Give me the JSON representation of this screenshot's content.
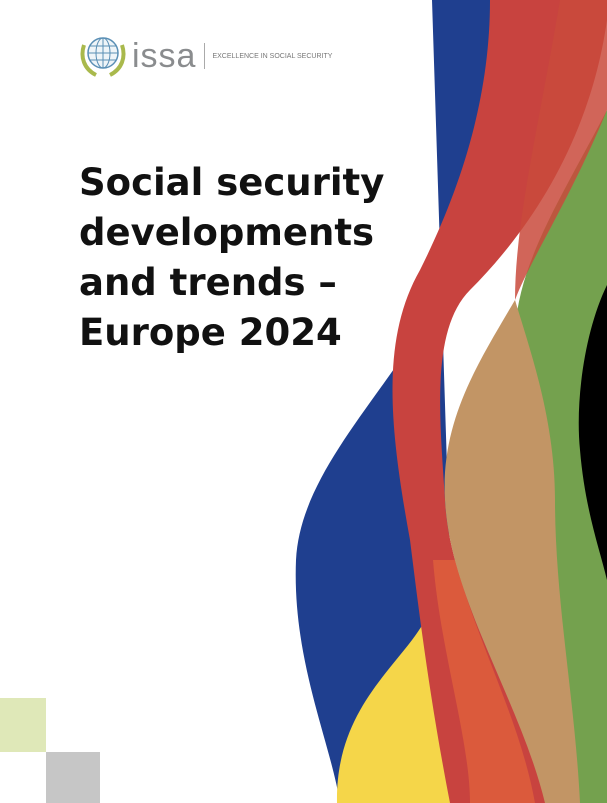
{
  "logo": {
    "word": "issa",
    "tagline": "EXCELLENCE IN SOCIAL SECURITY"
  },
  "title": {
    "lines": [
      "Social security",
      "developments",
      "and trends –",
      "Europe 2024"
    ]
  },
  "colors": {
    "blue": "#1f3f8f",
    "red": "#c8433f",
    "green": "#74a14e",
    "black": "#000000",
    "tan": "#c29565",
    "yellow": "#f5d649",
    "orange": "#db5a3c",
    "square_green": "#dfe8b8",
    "square_gray": "#c6c6c6"
  }
}
